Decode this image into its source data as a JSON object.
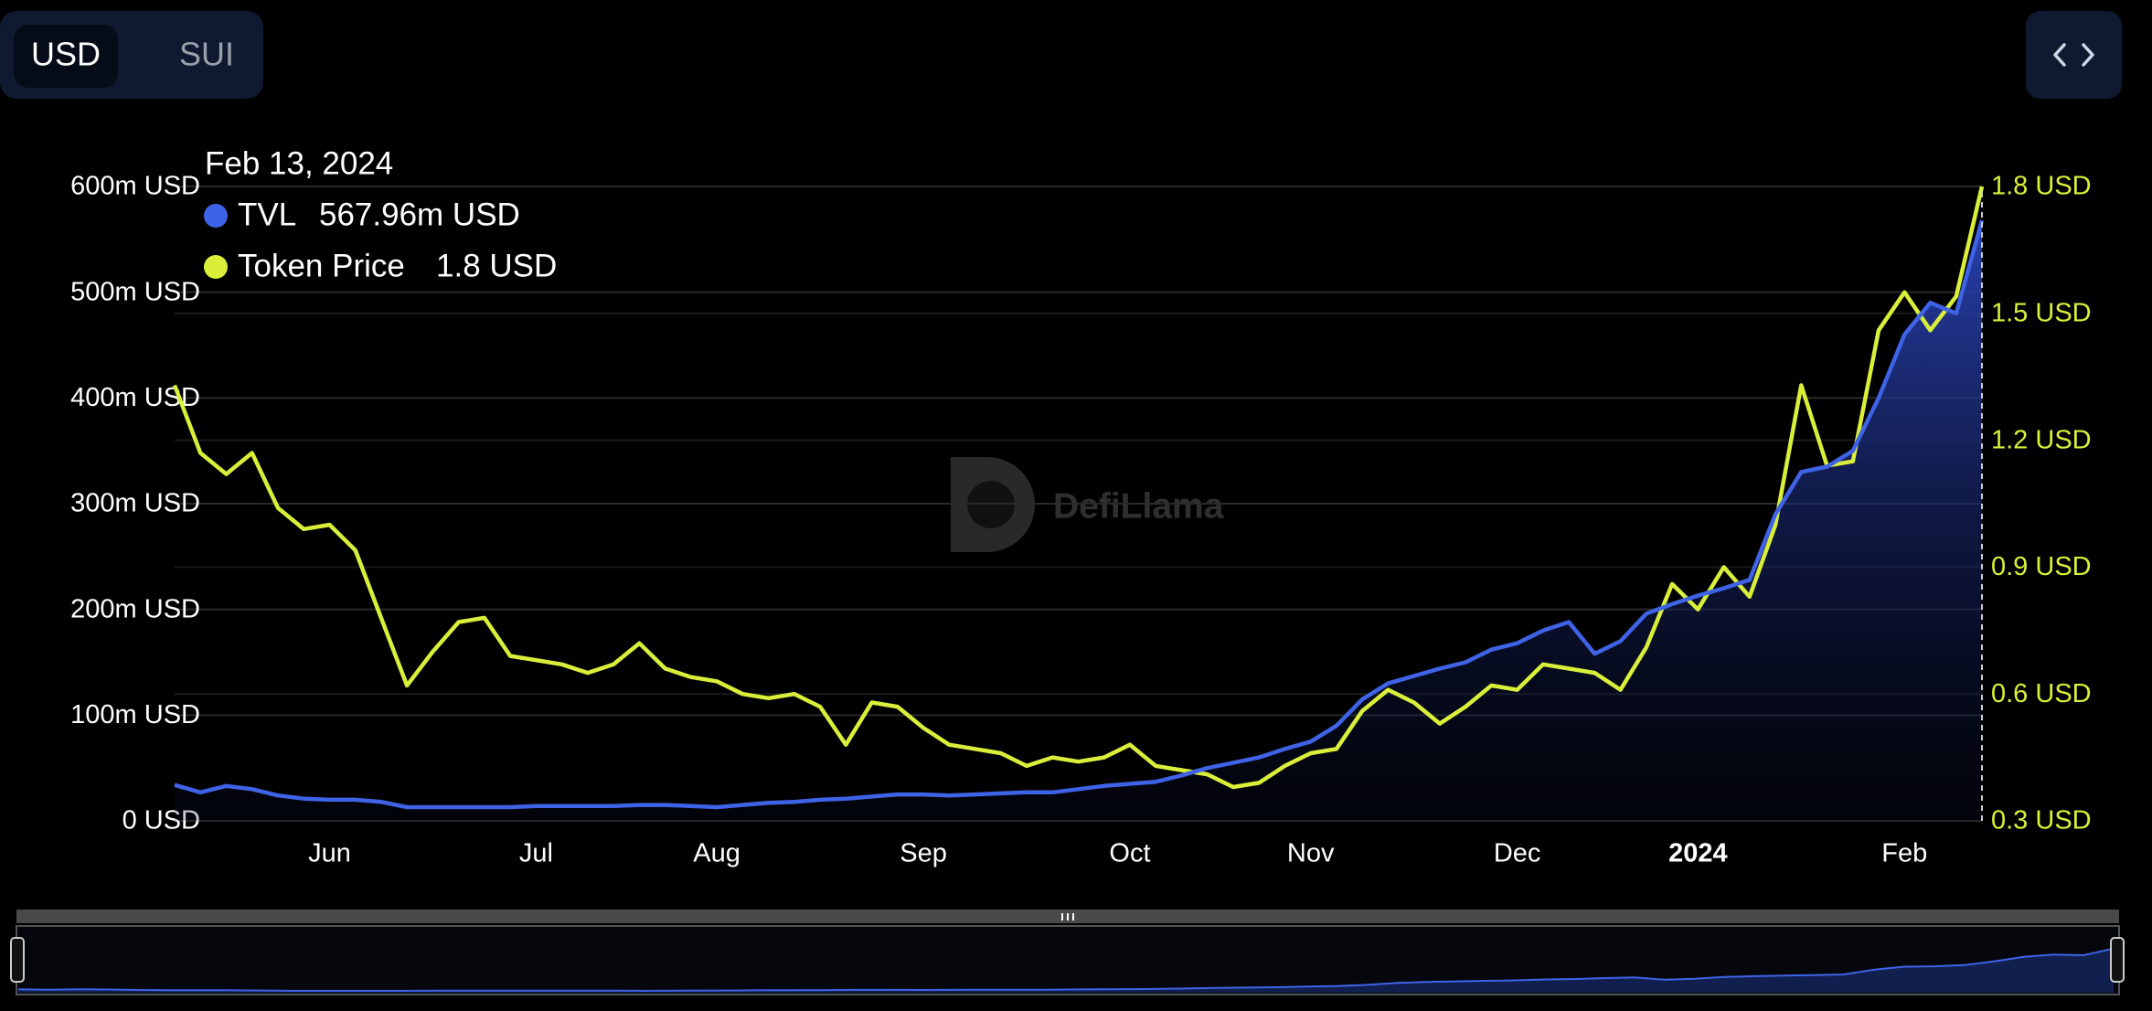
{
  "currency_toggle": [
    "USD",
    "SUI"
  ],
  "watermark": "DefiLlama",
  "chart_data": {
    "type": "line",
    "categories": [
      null,
      null,
      null,
      null,
      null,
      null,
      "Jun",
      null,
      null,
      null,
      null,
      null,
      null,
      null,
      "Jul",
      null,
      null,
      null,
      null,
      null,
      null,
      "Aug",
      null,
      null,
      null,
      null,
      null,
      null,
      null,
      "Sep",
      null,
      null,
      null,
      null,
      null,
      null,
      null,
      "Oct",
      null,
      null,
      null,
      null,
      null,
      null,
      "Nov",
      null,
      null,
      null,
      null,
      null,
      null,
      null,
      "Dec",
      null,
      null,
      null,
      null,
      null,
      null,
      "2024",
      null,
      null,
      null,
      null,
      null,
      null,
      null,
      "Feb",
      null,
      null,
      null
    ],
    "series": [
      {
        "name": "TVL",
        "color": "#3f63e6",
        "axis": "y",
        "values": [
          34,
          27,
          33,
          30,
          24,
          21,
          20,
          20,
          18,
          13,
          13,
          13,
          13,
          13,
          14,
          14,
          14,
          14,
          15,
          15,
          14,
          13,
          15,
          17,
          18,
          20,
          21,
          23,
          25,
          25,
          24,
          25,
          26,
          27,
          27,
          30,
          33,
          35,
          37,
          43,
          50,
          55,
          60,
          68,
          75,
          90,
          115,
          130,
          137,
          144,
          150,
          162,
          168,
          180,
          188,
          158,
          170,
          196,
          205,
          213,
          220,
          228,
          290,
          330,
          335,
          350,
          400,
          460,
          490,
          480,
          567.96
        ]
      },
      {
        "name": "Token Price",
        "color": "#d9ef3a",
        "axis": "y2",
        "values": [
          1.33,
          1.17,
          1.12,
          1.17,
          1.04,
          0.99,
          1.0,
          0.94,
          0.78,
          0.62,
          0.7,
          0.77,
          0.78,
          0.69,
          0.68,
          0.67,
          0.65,
          0.67,
          0.72,
          0.66,
          0.64,
          0.63,
          0.6,
          0.59,
          0.6,
          0.57,
          0.48,
          0.58,
          0.57,
          0.52,
          0.48,
          0.47,
          0.46,
          0.43,
          0.45,
          0.44,
          0.45,
          0.48,
          0.43,
          0.42,
          0.41,
          0.38,
          0.39,
          0.43,
          0.46,
          0.47,
          0.56,
          0.61,
          0.58,
          0.53,
          0.57,
          0.62,
          0.61,
          0.67,
          0.66,
          0.65,
          0.61,
          0.71,
          0.86,
          0.8,
          0.9,
          0.83,
          1.0,
          1.33,
          1.14,
          1.15,
          1.46,
          1.55,
          1.46,
          1.54,
          1.8
        ]
      }
    ],
    "ylim": [
      0,
      600
    ],
    "yticks": [
      {
        "value": 0,
        "label": "0 USD"
      },
      {
        "value": 100,
        "label": "100m USD"
      },
      {
        "value": 200,
        "label": "200m USD"
      },
      {
        "value": 300,
        "label": "300m USD"
      },
      {
        "value": 400,
        "label": "400m USD"
      },
      {
        "value": 500,
        "label": "500m USD"
      },
      {
        "value": 600,
        "label": "600m USD"
      }
    ],
    "y2lim": [
      0.3,
      1.8
    ],
    "y2ticks": [
      {
        "value": 0.3,
        "label": "0.3 USD"
      },
      {
        "value": 0.6,
        "label": "0.6 USD"
      },
      {
        "value": 0.9,
        "label": "0.9 USD"
      },
      {
        "value": 1.2,
        "label": "1.2 USD"
      },
      {
        "value": 1.5,
        "label": "1.5 USD"
      },
      {
        "value": 1.8,
        "label": "1.8 USD"
      }
    ],
    "grid": true,
    "tooltip": {
      "title": "Feb 13, 2024",
      "items": [
        {
          "value": 567.96,
          "label": "567.96m USD"
        },
        {
          "value": 1.8,
          "label": "1.8 USD"
        }
      ]
    }
  }
}
